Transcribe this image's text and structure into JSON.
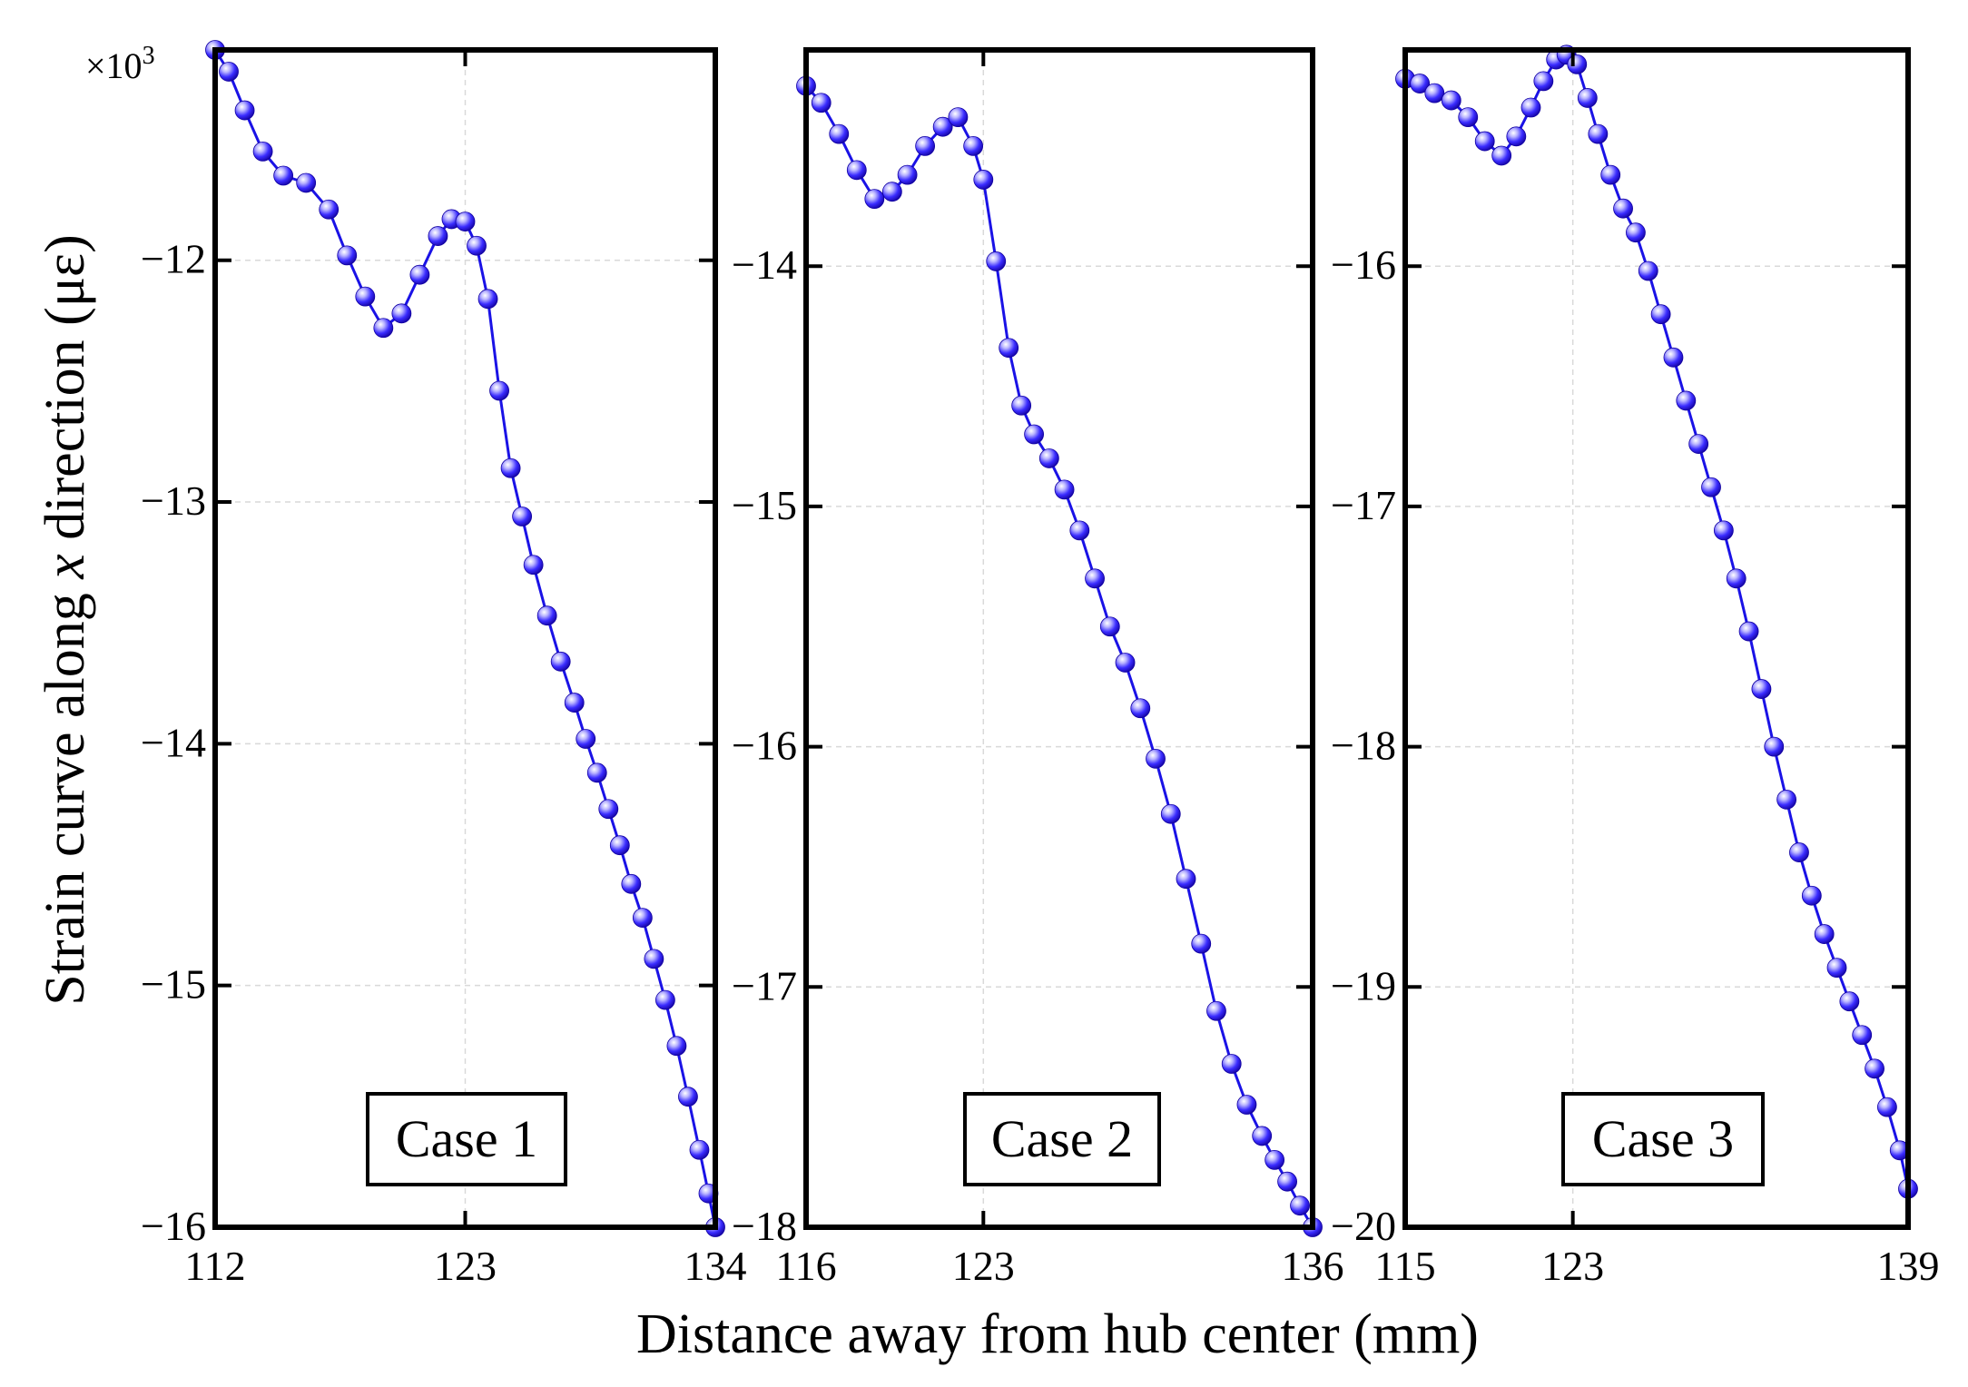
{
  "figure": {
    "ylabel": "Strain curve along x direction (με)",
    "ylabel_parts": {
      "before": "Strain curve along ",
      "var": "x",
      "after": " direction (με)"
    },
    "xlabel": "Distance away from hub center (mm)",
    "multiplier_base": "×10",
    "multiplier_exp": "3"
  },
  "colors": {
    "series": "#1a12e6",
    "marker_fill": "#2f22ff",
    "grid": "#d9d9d9"
  },
  "chart_data": [
    {
      "type": "line",
      "title": "Case 1",
      "xlabel": "Distance away from hub center (mm)",
      "ylabel": "Strain curve along x direction (με)",
      "xlim": [
        112,
        134
      ],
      "ylim": [
        -16,
        -11.13
      ],
      "xticks": [
        112,
        123,
        134
      ],
      "xtick_labels": [
        "112",
        "123",
        "134"
      ],
      "yticks": [
        -16,
        -15,
        -14,
        -13,
        -12
      ],
      "ytick_labels": [
        "−16",
        "−15",
        "−14",
        "−13",
        "−12"
      ],
      "grid": true,
      "series": [
        {
          "name": "Case 1",
          "x": [
            112.0,
            112.6,
            113.3,
            114.1,
            115.0,
            116.0,
            117.0,
            117.8,
            118.6,
            119.4,
            120.2,
            121.0,
            121.8,
            122.4,
            123.0,
            123.5,
            124.0,
            124.5,
            125.0,
            125.5,
            126.0,
            126.6,
            127.2,
            127.8,
            128.3,
            128.8,
            129.3,
            129.8,
            130.3,
            130.8,
            131.3,
            131.8,
            132.3,
            132.8,
            133.3,
            133.7,
            134.0
          ],
          "y": [
            -11.13,
            -11.22,
            -11.38,
            -11.55,
            -11.65,
            -11.68,
            -11.79,
            -11.98,
            -12.15,
            -12.28,
            -12.22,
            -12.06,
            -11.9,
            -11.83,
            -11.84,
            -11.94,
            -12.16,
            -12.54,
            -12.86,
            -13.06,
            -13.26,
            -13.47,
            -13.66,
            -13.83,
            -13.98,
            -14.12,
            -14.27,
            -14.42,
            -14.58,
            -14.72,
            -14.89,
            -15.06,
            -15.25,
            -15.46,
            -15.68,
            -15.86,
            -16.0
          ]
        }
      ]
    },
    {
      "type": "line",
      "title": "Case 2",
      "xlabel": "Distance away from hub center (mm)",
      "ylabel": "Strain curve along x direction (με)",
      "xlim": [
        116,
        136
      ],
      "ylim": [
        -18,
        -13.1
      ],
      "xticks": [
        116,
        123,
        136
      ],
      "xtick_labels": [
        "116",
        "123",
        "136"
      ],
      "yticks": [
        -18,
        -17,
        -16,
        -15,
        -14
      ],
      "ytick_labels": [
        "−18",
        "−17",
        "−16",
        "−15",
        "−14"
      ],
      "grid": true,
      "series": [
        {
          "name": "Case 2",
          "x": [
            116.0,
            116.6,
            117.3,
            118.0,
            118.7,
            119.4,
            120.0,
            120.7,
            121.4,
            122.0,
            122.6,
            123.0,
            123.5,
            124.0,
            124.5,
            125.0,
            125.6,
            126.2,
            126.8,
            127.4,
            128.0,
            128.6,
            129.2,
            129.8,
            130.4,
            131.0,
            131.6,
            132.2,
            132.8,
            133.4,
            134.0,
            134.5,
            135.0,
            135.5,
            136.0
          ],
          "y": [
            -13.25,
            -13.32,
            -13.45,
            -13.6,
            -13.72,
            -13.69,
            -13.62,
            -13.5,
            -13.42,
            -13.38,
            -13.5,
            -13.64,
            -13.98,
            -14.34,
            -14.58,
            -14.7,
            -14.8,
            -14.93,
            -15.1,
            -15.3,
            -15.5,
            -15.65,
            -15.84,
            -16.05,
            -16.28,
            -16.55,
            -16.82,
            -17.1,
            -17.32,
            -17.49,
            -17.62,
            -17.72,
            -17.81,
            -17.91,
            -18.0
          ]
        }
      ]
    },
    {
      "type": "line",
      "title": "Case 3",
      "xlabel": "Distance away from hub center (mm)",
      "ylabel": "Strain curve along x direction (με)",
      "xlim": [
        115,
        139
      ],
      "ylim": [
        -20,
        -15.1
      ],
      "xticks": [
        115,
        123,
        139
      ],
      "xtick_labels": [
        "115",
        "123",
        "139"
      ],
      "yticks": [
        -20,
        -19,
        -18,
        -17,
        -16
      ],
      "ytick_labels": [
        "−20",
        "−19",
        "−18",
        "−17",
        "−16"
      ],
      "grid": true,
      "series": [
        {
          "name": "Case 3",
          "x": [
            115.0,
            115.7,
            116.4,
            117.2,
            118.0,
            118.8,
            119.6,
            120.3,
            121.0,
            121.6,
            122.2,
            122.7,
            123.2,
            123.7,
            124.2,
            124.8,
            125.4,
            126.0,
            126.6,
            127.2,
            127.8,
            128.4,
            129.0,
            129.6,
            130.2,
            130.8,
            131.4,
            132.0,
            132.6,
            133.2,
            133.8,
            134.4,
            135.0,
            135.6,
            136.2,
            136.8,
            137.4,
            138.0,
            138.6,
            139.0
          ],
          "y": [
            -15.22,
            -15.24,
            -15.28,
            -15.31,
            -15.38,
            -15.48,
            -15.54,
            -15.46,
            -15.34,
            -15.23,
            -15.14,
            -15.12,
            -15.16,
            -15.3,
            -15.45,
            -15.62,
            -15.76,
            -15.86,
            -16.02,
            -16.2,
            -16.38,
            -16.56,
            -16.74,
            -16.92,
            -17.1,
            -17.3,
            -17.52,
            -17.76,
            -18.0,
            -18.22,
            -18.44,
            -18.62,
            -18.78,
            -18.92,
            -19.06,
            -19.2,
            -19.34,
            -19.5,
            -19.68,
            -19.84
          ]
        }
      ]
    }
  ]
}
